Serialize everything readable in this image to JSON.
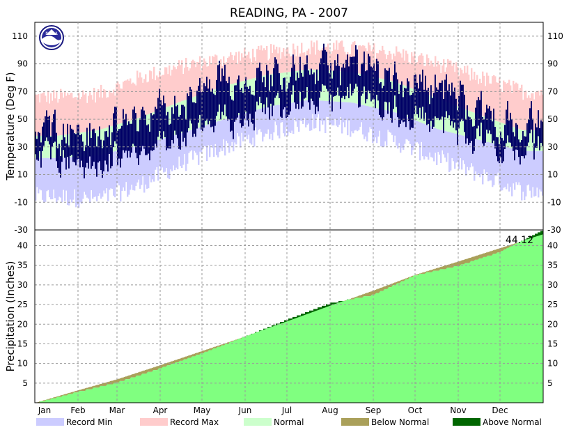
{
  "title": "READING, PA - 2007",
  "colors": {
    "record_min": "#ccccff",
    "record_max": "#ffcccc",
    "normal": "#ccffcc",
    "observed": "#000066",
    "below_normal": "#aaa05a",
    "above_normal": "#006600",
    "precip_fill": "#80ff80",
    "grid": "#9a9a9a"
  },
  "logo_text": "NOAA",
  "chart_data": [
    {
      "type": "area",
      "panel": "temperature",
      "ylabel": "Temperature (Deg F)",
      "ylim": [
        -30,
        120
      ],
      "yticks": [
        -30,
        -10,
        10,
        30,
        50,
        70,
        90,
        110
      ],
      "grid": true,
      "x_months": [
        "Jan",
        "Feb",
        "Mar",
        "Apr",
        "May",
        "Jun",
        "Jul",
        "Aug",
        "Sep",
        "Oct",
        "Nov",
        "Dec"
      ],
      "month_start_day": [
        0,
        31,
        59,
        90,
        120,
        151,
        181,
        212,
        243,
        273,
        304,
        334
      ],
      "days": 365,
      "record_max_monthly": [
        66,
        68,
        80,
        88,
        94,
        98,
        102,
        101,
        98,
        90,
        80,
        70
      ],
      "record_min_monthly": [
        -6,
        -8,
        2,
        18,
        30,
        40,
        48,
        44,
        34,
        22,
        10,
        -2
      ],
      "normal_high_monthly": [
        38,
        42,
        51,
        63,
        74,
        82,
        86,
        84,
        77,
        65,
        53,
        42
      ],
      "normal_low_monthly": [
        22,
        24,
        31,
        40,
        50,
        59,
        64,
        62,
        55,
        43,
        35,
        27
      ],
      "observed_high_monthly": [
        45,
        36,
        52,
        60,
        76,
        83,
        86,
        86,
        82,
        76,
        55,
        43
      ],
      "observed_low_monthly": [
        26,
        14,
        26,
        36,
        48,
        60,
        63,
        64,
        56,
        50,
        34,
        27
      ],
      "series": [
        {
          "name": "Record Min"
        },
        {
          "name": "Record Max"
        },
        {
          "name": "Normal"
        }
      ]
    },
    {
      "type": "area",
      "panel": "precipitation",
      "ylabel": "Precipitation (Inches)",
      "ylim": [
        0,
        44
      ],
      "yticks": [
        5,
        10,
        15,
        20,
        25,
        30,
        35,
        40
      ],
      "grid": true,
      "total_label": "44.12",
      "normal_cumulative_month_end": [
        3.2,
        6.0,
        9.6,
        13.2,
        16.9,
        20.7,
        24.7,
        28.6,
        32.6,
        36.0,
        39.4,
        42.9
      ],
      "observed_cumulative_month_end": [
        2.9,
        5.3,
        8.9,
        12.7,
        17.0,
        21.3,
        25.5,
        27.6,
        32.6,
        35.0,
        38.5,
        44.12
      ],
      "series": [
        {
          "name": "Below Normal"
        },
        {
          "name": "Above Normal"
        }
      ]
    }
  ]
}
